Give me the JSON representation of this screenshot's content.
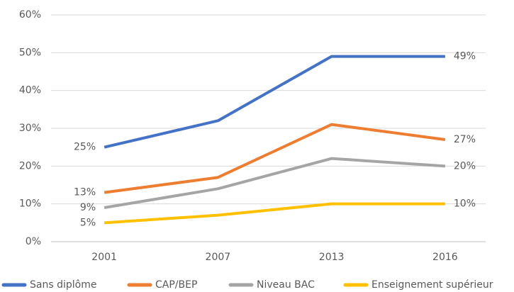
{
  "chart_data": {
    "type": "line",
    "categories": [
      "2001",
      "2007",
      "2013",
      "2016"
    ],
    "series": [
      {
        "name": "Sans diplôme",
        "color": "#4472c4",
        "values": [
          25,
          32,
          49,
          49
        ],
        "value_labels": [
          "25%",
          null,
          null,
          "49%"
        ]
      },
      {
        "name": "CAP/BEP",
        "color": "#ed7d31",
        "values": [
          13,
          17,
          31,
          27
        ],
        "value_labels": [
          "13%",
          null,
          null,
          "27%"
        ]
      },
      {
        "name": "Niveau BAC",
        "color": "#a5a5a5",
        "values": [
          9,
          14,
          22,
          20
        ],
        "value_labels": [
          "9%",
          null,
          null,
          "20%"
        ]
      },
      {
        "name": "Enseignement supérieur",
        "color": "#ffc000",
        "values": [
          5,
          7,
          10,
          10
        ],
        "value_labels": [
          "5%",
          null,
          null,
          "10%"
        ]
      }
    ],
    "ylim": [
      0,
      60
    ],
    "yticks": [
      {
        "value": 0,
        "label": "0%"
      },
      {
        "value": 10,
        "label": "10%"
      },
      {
        "value": 20,
        "label": "20%"
      },
      {
        "value": 30,
        "label": "30%"
      },
      {
        "value": 40,
        "label": "40%"
      },
      {
        "value": 50,
        "label": "50%"
      },
      {
        "value": 60,
        "label": "60%"
      }
    ],
    "grid": true,
    "legend": "bottom"
  }
}
